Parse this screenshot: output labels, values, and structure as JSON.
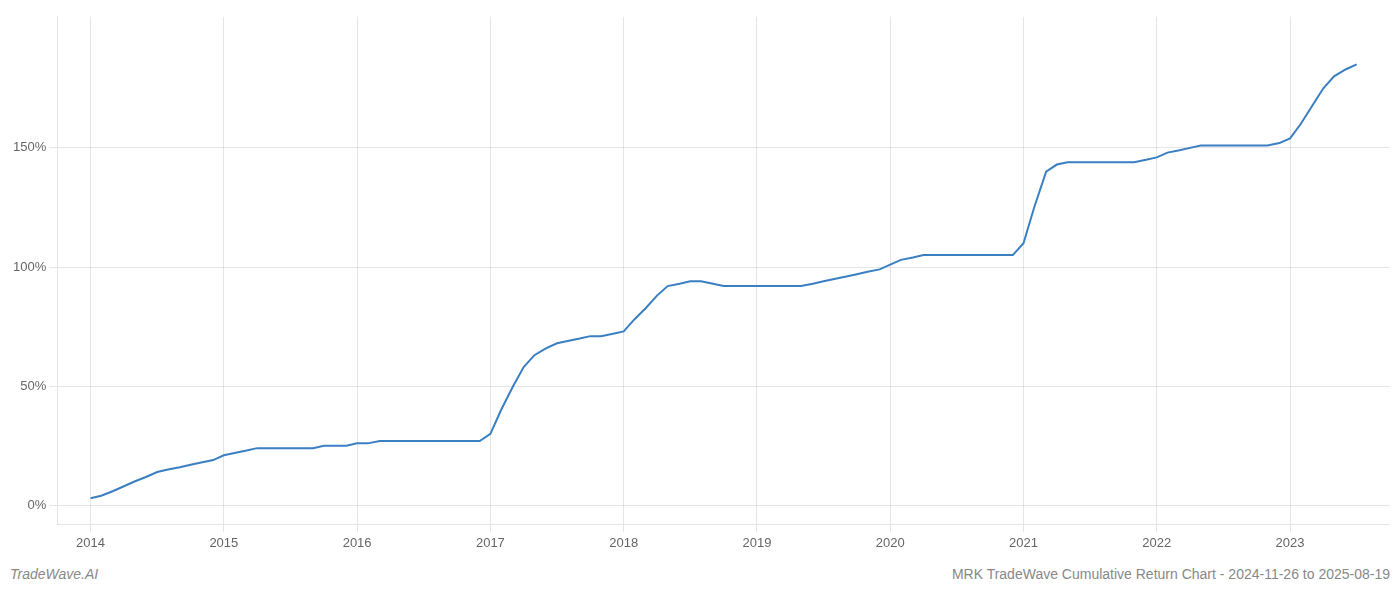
{
  "chart_data": {
    "type": "line",
    "title": "MRK TradeWave Cumulative Return Chart - 2024-11-26 to 2025-08-19",
    "annotations": [
      "TradeWave.AI"
    ],
    "x": [
      2014.0,
      2014.08,
      2014.17,
      2014.25,
      2014.33,
      2014.42,
      2014.5,
      2014.58,
      2014.67,
      2014.75,
      2014.83,
      2014.92,
      2015.0,
      2015.08,
      2015.17,
      2015.25,
      2015.33,
      2015.42,
      2015.5,
      2015.58,
      2015.67,
      2015.75,
      2015.83,
      2015.92,
      2016.0,
      2016.08,
      2016.17,
      2016.25,
      2016.33,
      2016.42,
      2016.5,
      2016.58,
      2016.67,
      2016.75,
      2016.83,
      2016.92,
      2017.0,
      2017.08,
      2017.17,
      2017.25,
      2017.33,
      2017.42,
      2017.5,
      2017.58,
      2017.67,
      2017.75,
      2017.83,
      2017.92,
      2018.0,
      2018.08,
      2018.17,
      2018.25,
      2018.33,
      2018.42,
      2018.5,
      2018.58,
      2018.67,
      2018.75,
      2018.83,
      2018.92,
      2019.0,
      2019.08,
      2019.17,
      2019.25,
      2019.33,
      2019.42,
      2019.5,
      2019.58,
      2019.67,
      2019.75,
      2019.83,
      2019.92,
      2020.0,
      2020.08,
      2020.17,
      2020.25,
      2020.33,
      2020.42,
      2020.5,
      2020.58,
      2020.67,
      2020.75,
      2020.83,
      2020.92,
      2021.0,
      2021.08,
      2021.17,
      2021.25,
      2021.33,
      2021.42,
      2021.5,
      2021.58,
      2021.67,
      2021.75,
      2021.83,
      2021.92,
      2022.0,
      2022.08,
      2022.17,
      2022.25,
      2022.33,
      2022.42,
      2022.5,
      2022.58,
      2022.67,
      2022.75,
      2022.83,
      2022.92,
      2023.0,
      2023.08,
      2023.17,
      2023.25,
      2023.33,
      2023.42,
      2023.5
    ],
    "values": [
      3,
      4,
      6,
      8,
      10,
      12,
      14,
      15,
      16,
      17,
      18,
      19,
      21,
      22,
      23,
      24,
      24,
      24,
      24,
      24,
      24,
      25,
      25,
      25,
      26,
      26,
      27,
      27,
      27,
      27,
      27,
      27,
      27,
      27,
      27,
      27,
      30,
      40,
      50,
      58,
      63,
      66,
      68,
      69,
      70,
      71,
      71,
      72,
      73,
      78,
      83,
      88,
      92,
      93,
      94,
      94,
      93,
      92,
      92,
      92,
      92,
      92,
      92,
      92,
      92,
      93,
      94,
      95,
      96,
      97,
      98,
      99,
      101,
      103,
      104,
      105,
      105,
      105,
      105,
      105,
      105,
      105,
      105,
      105,
      110,
      125,
      140,
      143,
      144,
      144,
      144,
      144,
      144,
      144,
      144,
      145,
      146,
      148,
      149,
      150,
      151,
      151,
      151,
      151,
      151,
      151,
      151,
      152,
      154,
      160,
      168,
      175,
      180,
      183,
      185
    ],
    "color": "#3a7fc1",
    "xlim": [
      2013.75,
      2023.75
    ],
    "xticks": [
      2014,
      2015,
      2016,
      2017,
      2018,
      2019,
      2020,
      2021,
      2022,
      2023
    ],
    "ylim": [
      -8,
      205
    ],
    "yticks": [
      {
        "value": 0,
        "label": "0%"
      },
      {
        "value": 50,
        "label": "50%"
      },
      {
        "value": 100,
        "label": "100%"
      },
      {
        "value": 150,
        "label": "150%"
      }
    ],
    "grid": true
  }
}
